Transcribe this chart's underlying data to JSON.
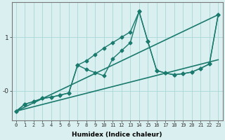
{
  "xlabel": "Humidex (Indice chaleur)",
  "bg_color": "#daf0f0",
  "line_color": "#1a7a6e",
  "grid_color": "#aad8d8",
  "xlim": [
    -0.5,
    23.5
  ],
  "ylim": [
    -0.55,
    1.65
  ],
  "yticks": [
    0,
    1
  ],
  "ytick_labels": [
    "-0",
    "1"
  ],
  "xticks": [
    0,
    1,
    2,
    3,
    4,
    5,
    6,
    7,
    8,
    9,
    10,
    11,
    12,
    13,
    14,
    15,
    16,
    17,
    18,
    19,
    20,
    21,
    22,
    23
  ],
  "lines": [
    {
      "x": [
        0,
        23
      ],
      "y": [
        -0.38,
        1.42
      ],
      "marker": null,
      "lw": 1.2,
      "ls": "-"
    },
    {
      "x": [
        0,
        23
      ],
      "y": [
        -0.38,
        0.58
      ],
      "marker": null,
      "lw": 1.2,
      "ls": "-"
    },
    {
      "x": [
        0,
        1,
        2,
        3,
        4,
        5,
        6,
        7,
        8,
        9,
        10,
        11,
        12,
        13,
        14,
        15,
        16,
        17,
        18,
        19,
        20,
        21,
        22,
        23
      ],
      "y": [
        -0.38,
        -0.25,
        -0.2,
        -0.14,
        -0.12,
        -0.08,
        -0.04,
        0.48,
        0.56,
        0.68,
        0.8,
        0.9,
        1.0,
        1.1,
        1.48,
        0.92,
        0.38,
        0.33,
        0.3,
        0.32,
        0.35,
        0.42,
        0.5,
        1.42
      ],
      "marker": "D",
      "lw": 1.0,
      "ls": "-"
    },
    {
      "x": [
        0,
        1,
        2,
        3,
        4,
        5,
        6,
        7,
        8,
        9,
        10,
        11,
        12,
        13,
        14,
        15,
        16,
        17,
        18,
        19,
        20,
        21,
        22,
        23
      ],
      "y": [
        -0.38,
        -0.25,
        -0.2,
        -0.14,
        -0.12,
        -0.08,
        -0.04,
        0.48,
        0.4,
        0.34,
        0.28,
        0.6,
        0.75,
        0.9,
        1.48,
        0.92,
        0.38,
        0.33,
        0.3,
        0.32,
        0.35,
        0.42,
        0.5,
        1.42
      ],
      "marker": "D",
      "lw": 1.0,
      "ls": "-"
    }
  ]
}
